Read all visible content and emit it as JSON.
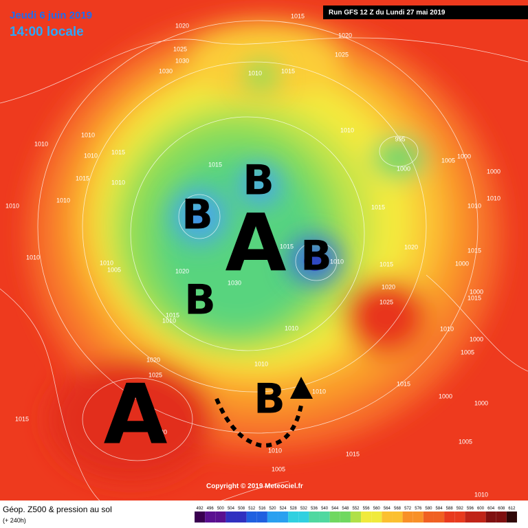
{
  "header": {
    "date": "Jeudi 6 juin 2019",
    "time": "14:00 locale",
    "run": "Run GFS 12 Z du Lundi 27 mai 2019"
  },
  "map": {
    "pressure_labels": [
      1015,
      1020,
      1020,
      1025,
      1030,
      1025,
      1030,
      1010,
      1015,
      1010,
      1010,
      1010,
      1015,
      1015,
      1010,
      1010,
      1010,
      1010,
      1005,
      1010,
      1015,
      1020,
      1030,
      1015,
      1010,
      995,
      1000,
      1005,
      1000,
      1010,
      1015,
      1020,
      1015,
      1020,
      1025,
      1000,
      1010,
      1010,
      1015,
      1000,
      1000,
      1015,
      1010,
      1000,
      1005,
      1020,
      1025,
      1015,
      1010,
      1010,
      1010,
      1015,
      1000,
      1000,
      1005,
      1015,
      1010,
      1005,
      1010,
      1030,
      1010,
      1015
    ],
    "systems": [
      "A",
      "B",
      "A",
      "B",
      "B",
      "B",
      "B"
    ]
  },
  "footer": {
    "title": "Géop. Z500 & pression au sol",
    "lead": "(+ 240h)",
    "copyright": "Copyright © 2019 Meteociel.fr",
    "scale": [
      492,
      496,
      500,
      504,
      508,
      512,
      516,
      520,
      524,
      528,
      532,
      536,
      540,
      544,
      548,
      552,
      556,
      560,
      564,
      568,
      572,
      576,
      580,
      584,
      588,
      592,
      596,
      600,
      604,
      608,
      612
    ]
  }
}
